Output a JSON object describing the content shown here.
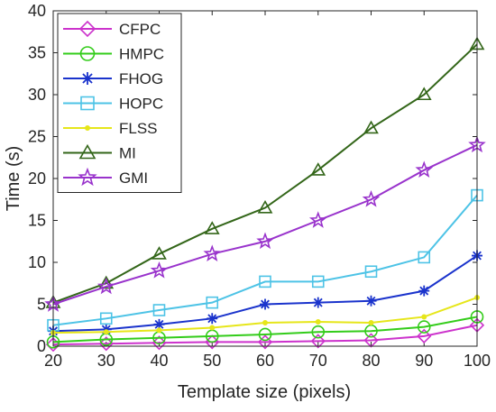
{
  "chart_data": {
    "type": "line",
    "title": "",
    "xlabel": "Template size (pixels)",
    "ylabel": "Time (s)",
    "xlim": [
      20,
      100
    ],
    "ylim": [
      0,
      40
    ],
    "x": [
      20,
      30,
      40,
      50,
      60,
      70,
      80,
      90,
      100
    ],
    "xticks": [
      20,
      30,
      40,
      50,
      60,
      70,
      80,
      90,
      100
    ],
    "yticks": [
      0,
      5,
      10,
      15,
      20,
      25,
      30,
      35,
      40
    ],
    "grid": false,
    "legend_position": "top-left",
    "series": [
      {
        "name": "CFPC",
        "color": "#cc33cc",
        "marker": "diamond",
        "values": [
          0.2,
          0.3,
          0.4,
          0.5,
          0.5,
          0.6,
          0.7,
          1.2,
          2.5
        ]
      },
      {
        "name": "HMPC",
        "color": "#33cc1a",
        "marker": "circle",
        "values": [
          0.5,
          0.8,
          1.0,
          1.2,
          1.4,
          1.7,
          1.8,
          2.3,
          3.5
        ]
      },
      {
        "name": "FHOG",
        "color": "#1a33cc",
        "marker": "asterisk",
        "values": [
          1.8,
          2.0,
          2.6,
          3.3,
          5.0,
          5.2,
          5.4,
          6.6,
          10.8
        ]
      },
      {
        "name": "HOPC",
        "color": "#4dc3e6",
        "marker": "square",
        "values": [
          2.5,
          3.3,
          4.3,
          5.2,
          7.7,
          7.7,
          8.9,
          10.6,
          18.0
        ]
      },
      {
        "name": "FLSS",
        "color": "#e6e61a",
        "marker": "dot",
        "values": [
          1.6,
          1.7,
          1.9,
          2.2,
          2.8,
          2.9,
          2.8,
          3.5,
          5.8
        ]
      },
      {
        "name": "MI",
        "color": "#336619",
        "marker": "triangle",
        "values": [
          5.2,
          7.5,
          11.0,
          14.0,
          16.5,
          21.0,
          26.0,
          30.0,
          36.0
        ]
      },
      {
        "name": "GMI",
        "color": "#9933cc",
        "marker": "star",
        "values": [
          5.0,
          7.1,
          9.0,
          11.0,
          12.5,
          15.0,
          17.5,
          21.0,
          24.0
        ]
      }
    ]
  }
}
